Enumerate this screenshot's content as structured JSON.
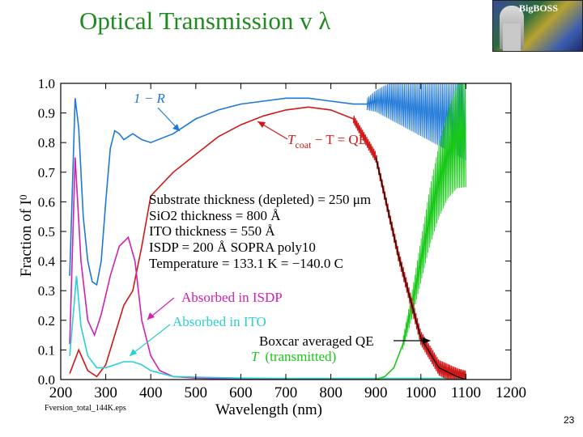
{
  "slide": {
    "title": "Optical Transmission v λ",
    "logo_text": "BigBOSS",
    "filename": "Fversion_total_144K.eps",
    "page_number": "23"
  },
  "chart_data": {
    "type": "line",
    "xlabel": "Wavelength (nm)",
    "ylabel": "Fraction of I",
    "ylabel_sub": "0",
    "xlim": [
      200,
      1200
    ],
    "ylim": [
      0.0,
      1.0
    ],
    "x_ticks": [
      200,
      300,
      400,
      500,
      600,
      700,
      800,
      900,
      1000,
      1100,
      1200
    ],
    "y_ticks": [
      "0.0",
      "0.1",
      "0.2",
      "0.3",
      "0.4",
      "0.5",
      "0.6",
      "0.7",
      "0.8",
      "0.9",
      "1.0"
    ],
    "colors": {
      "one_minus_R": "#1e78d8",
      "qe": "#d01818",
      "isdp": "#d020b0",
      "ito": "#28d0d0",
      "transmitted": "#18c818",
      "boxcar": "#000000"
    },
    "series": [
      {
        "name": "1 − R",
        "key": "one_minus_R",
        "x": [
          220,
          232,
          240,
          250,
          260,
          270,
          280,
          290,
          300,
          310,
          320,
          330,
          340,
          350,
          360,
          370,
          380,
          400,
          450,
          500,
          550,
          600,
          650,
          700,
          750,
          800,
          850,
          880,
          900
        ],
        "y": [
          0.35,
          0.95,
          0.85,
          0.55,
          0.4,
          0.33,
          0.32,
          0.4,
          0.6,
          0.78,
          0.84,
          0.83,
          0.81,
          0.82,
          0.83,
          0.82,
          0.81,
          0.8,
          0.83,
          0.88,
          0.91,
          0.93,
          0.94,
          0.95,
          0.95,
          0.94,
          0.93,
          0.93,
          0.94
        ]
      },
      {
        "name": "T_coat − T = QE",
        "key": "qe",
        "x": [
          220,
          240,
          260,
          280,
          300,
          320,
          340,
          360,
          380,
          400,
          450,
          500,
          550,
          600,
          650,
          700,
          750,
          800,
          850,
          900,
          950,
          1000,
          1040,
          1080,
          1100
        ],
        "y": [
          0.02,
          0.1,
          0.03,
          0.01,
          0.05,
          0.15,
          0.25,
          0.3,
          0.45,
          0.62,
          0.7,
          0.76,
          0.82,
          0.86,
          0.89,
          0.91,
          0.92,
          0.91,
          0.88,
          0.75,
          0.42,
          0.14,
          0.04,
          0.01,
          0.0
        ]
      },
      {
        "name": "Absorbed in ISDP",
        "key": "isdp",
        "x": [
          220,
          232,
          245,
          260,
          275,
          290,
          310,
          330,
          350,
          365,
          380,
          400,
          420,
          450,
          500,
          550,
          600,
          700,
          900
        ],
        "y": [
          0.12,
          0.75,
          0.4,
          0.2,
          0.15,
          0.22,
          0.35,
          0.45,
          0.48,
          0.4,
          0.2,
          0.08,
          0.03,
          0.01,
          0.005,
          0.003,
          0.002,
          0.001,
          0.0
        ]
      },
      {
        "name": "Absorbed in ITO",
        "key": "ito",
        "x": [
          220,
          235,
          245,
          260,
          280,
          300,
          320,
          340,
          360,
          380,
          400,
          450,
          500,
          600,
          700,
          800,
          900,
          1000,
          1100
        ],
        "y": [
          0.08,
          0.35,
          0.18,
          0.08,
          0.04,
          0.04,
          0.05,
          0.06,
          0.06,
          0.05,
          0.03,
          0.01,
          0.008,
          0.005,
          0.004,
          0.004,
          0.004,
          0.004,
          0.004
        ]
      },
      {
        "name": "T (transmitted)",
        "key": "transmitted",
        "x": [
          900,
          920,
          940,
          960,
          980,
          1000,
          1020,
          1040,
          1060,
          1080,
          1100
        ],
        "y": [
          0.0,
          0.01,
          0.04,
          0.12,
          0.25,
          0.4,
          0.55,
          0.67,
          0.76,
          0.82,
          0.85
        ]
      }
    ],
    "annotations": {
      "one_minus_R": "1 − R",
      "qe_t": "T",
      "qe_sub": "coat",
      "qe_rest": " − T = QE",
      "isdp": "Absorbed in ISDP",
      "ito": "Absorbed in ITO",
      "boxcar": "Boxcar averaged QE",
      "transmitted_t": "T",
      "transmitted_rest": "(transmitted)",
      "params": [
        "Substrate thickness (depleted) = 250 μm",
        "SiO2 thickness = 800 Å",
        "ITO thickness = 550 Å",
        "ISDP = 200 Å SOPRA poly10",
        "Temperature = 133.1 K =  −140.0 C"
      ]
    }
  }
}
